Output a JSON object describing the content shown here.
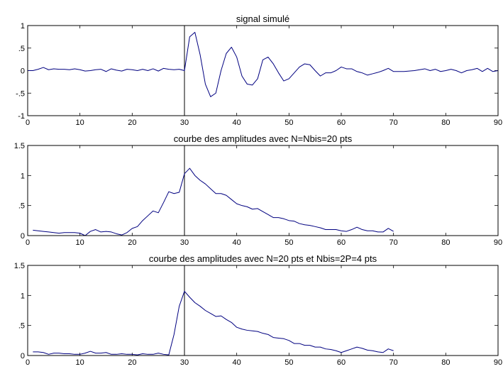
{
  "chart_data": [
    {
      "type": "line",
      "title": "signal simulé",
      "xlabel": "",
      "ylabel": "",
      "xlim": [
        0,
        90
      ],
      "ylim": [
        -1,
        1
      ],
      "xticks": [
        0,
        10,
        20,
        30,
        40,
        50,
        60,
        70,
        80,
        90
      ],
      "yticks": [
        -1,
        -0.5,
        0,
        0.5,
        1
      ],
      "grid": false,
      "marker_x": 30,
      "series": [
        {
          "color": "#000080",
          "x": [
            0,
            1,
            2,
            3,
            4,
            5,
            6,
            7,
            8,
            9,
            10,
            11,
            12,
            13,
            14,
            15,
            16,
            17,
            18,
            19,
            20,
            21,
            22,
            23,
            24,
            25,
            26,
            27,
            28,
            29,
            30,
            31,
            32,
            33,
            34,
            35,
            36,
            37,
            38,
            39,
            40,
            41,
            42,
            43,
            44,
            45,
            46,
            47,
            48,
            49,
            50,
            51,
            52,
            53,
            54,
            55,
            56,
            57,
            58,
            59,
            60,
            61,
            62,
            63,
            64,
            65,
            66,
            67,
            68,
            69,
            70,
            71,
            72,
            73,
            74,
            75,
            76,
            77,
            78,
            79,
            80,
            81,
            82,
            83,
            84,
            85,
            86,
            87,
            88,
            89,
            90
          ],
          "values": [
            0.0,
            0.0,
            0.03,
            0.07,
            0.02,
            0.04,
            0.03,
            0.03,
            0.02,
            0.04,
            0.02,
            -0.01,
            0.0,
            0.02,
            0.03,
            -0.02,
            0.04,
            0.01,
            -0.01,
            0.03,
            0.02,
            0.0,
            0.03,
            0.0,
            0.04,
            -0.01,
            0.05,
            0.03,
            0.02,
            0.03,
            0.0,
            0.75,
            0.85,
            0.35,
            -0.3,
            -0.58,
            -0.5,
            0.0,
            0.38,
            0.52,
            0.3,
            -0.12,
            -0.3,
            -0.32,
            -0.18,
            0.24,
            0.3,
            0.15,
            -0.05,
            -0.23,
            -0.18,
            -0.05,
            0.08,
            0.15,
            0.13,
            0.0,
            -0.12,
            -0.05,
            -0.05,
            0.0,
            0.08,
            0.04,
            0.04,
            -0.02,
            -0.05,
            -0.1,
            -0.07,
            -0.04,
            0.0,
            0.05,
            -0.02,
            -0.02,
            -0.02,
            -0.01,
            0.0,
            0.02,
            0.04,
            0.0,
            0.03,
            -0.02,
            0.0,
            0.03,
            0.0,
            -0.05,
            0.0,
            0.02,
            0.05,
            -0.02,
            0.05,
            -0.02,
            0.0
          ]
        }
      ]
    },
    {
      "type": "line",
      "title": "courbe des amplitudes avec N=Nbis=20 pts",
      "xlabel": "",
      "ylabel": "",
      "xlim": [
        0,
        90
      ],
      "ylim": [
        0,
        1.5
      ],
      "xticks": [
        0,
        10,
        20,
        30,
        40,
        50,
        60,
        70,
        80,
        90
      ],
      "yticks": [
        0,
        0.5,
        1,
        1.5
      ],
      "grid": false,
      "marker_x": 30,
      "series": [
        {
          "color": "#000080",
          "x": [
            1,
            2,
            3,
            4,
            5,
            6,
            7,
            8,
            9,
            10,
            11,
            12,
            13,
            14,
            15,
            16,
            17,
            18,
            19,
            20,
            21,
            22,
            23,
            24,
            25,
            26,
            27,
            28,
            29,
            30,
            31,
            32,
            33,
            34,
            35,
            36,
            37,
            38,
            39,
            40,
            41,
            42,
            43,
            44,
            45,
            46,
            47,
            48,
            49,
            50,
            51,
            52,
            53,
            54,
            55,
            56,
            57,
            58,
            59,
            60,
            61,
            62,
            63,
            64,
            65,
            66,
            67,
            68,
            69,
            70
          ],
          "values": [
            0.09,
            0.08,
            0.07,
            0.06,
            0.05,
            0.04,
            0.05,
            0.05,
            0.05,
            0.04,
            0.0,
            0.07,
            0.1,
            0.06,
            0.07,
            0.06,
            0.03,
            0.01,
            0.05,
            0.12,
            0.15,
            0.25,
            0.33,
            0.41,
            0.38,
            0.55,
            0.73,
            0.7,
            0.72,
            1.03,
            1.12,
            1.0,
            0.92,
            0.86,
            0.78,
            0.7,
            0.7,
            0.67,
            0.6,
            0.53,
            0.5,
            0.48,
            0.44,
            0.45,
            0.4,
            0.35,
            0.3,
            0.3,
            0.28,
            0.25,
            0.24,
            0.2,
            0.18,
            0.17,
            0.15,
            0.13,
            0.1,
            0.1,
            0.1,
            0.08,
            0.07,
            0.1,
            0.14,
            0.1,
            0.08,
            0.08,
            0.06,
            0.06,
            0.12,
            0.07
          ]
        }
      ]
    },
    {
      "type": "line",
      "title": "courbe des amplitudes avec N=20 pts et Nbis=2P=4 pts",
      "xlabel": "",
      "ylabel": "",
      "xlim": [
        0,
        90
      ],
      "ylim": [
        0,
        1.5
      ],
      "xticks": [
        0,
        10,
        20,
        30,
        40,
        50,
        60,
        70,
        80,
        90
      ],
      "yticks": [
        0,
        0.5,
        1,
        1.5
      ],
      "grid": false,
      "marker_x": 30,
      "series": [
        {
          "color": "#000080",
          "x": [
            1,
            2,
            3,
            4,
            5,
            6,
            7,
            8,
            9,
            10,
            11,
            12,
            13,
            14,
            15,
            16,
            17,
            18,
            19,
            20,
            21,
            22,
            23,
            24,
            25,
            26,
            27,
            28,
            29,
            30,
            31,
            32,
            33,
            34,
            35,
            36,
            37,
            38,
            39,
            40,
            41,
            42,
            43,
            44,
            45,
            46,
            47,
            48,
            49,
            50,
            51,
            52,
            53,
            54,
            55,
            56,
            57,
            58,
            59,
            60,
            61,
            62,
            63,
            64,
            65,
            66,
            67,
            68,
            69,
            70
          ],
          "values": [
            0.06,
            0.06,
            0.05,
            0.02,
            0.04,
            0.04,
            0.03,
            0.03,
            0.02,
            0.02,
            0.04,
            0.07,
            0.04,
            0.04,
            0.05,
            0.02,
            0.02,
            0.03,
            0.02,
            0.02,
            0.01,
            0.03,
            0.02,
            0.02,
            0.04,
            0.02,
            0.01,
            0.35,
            0.82,
            1.07,
            0.97,
            0.88,
            0.82,
            0.75,
            0.7,
            0.65,
            0.66,
            0.6,
            0.55,
            0.47,
            0.44,
            0.42,
            0.41,
            0.4,
            0.37,
            0.35,
            0.3,
            0.29,
            0.28,
            0.25,
            0.2,
            0.2,
            0.17,
            0.17,
            0.14,
            0.14,
            0.11,
            0.1,
            0.08,
            0.05,
            0.08,
            0.11,
            0.14,
            0.12,
            0.09,
            0.08,
            0.06,
            0.05,
            0.11,
            0.08
          ]
        }
      ]
    }
  ]
}
